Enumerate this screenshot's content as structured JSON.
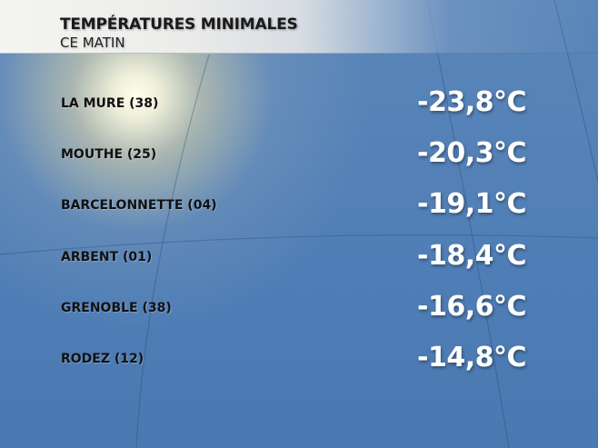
{
  "header": {
    "title": "TEMPÉRATURES MINIMALES",
    "subtitle": "CE MATIN"
  },
  "rows": [
    {
      "name": "LA MURE (38)",
      "value": "-23,8°C"
    },
    {
      "name": "MOUTHE (25)",
      "value": "-20,3°C"
    },
    {
      "name": "BARCELONNETTE (04)",
      "value": "-19,1°C"
    },
    {
      "name": "ARBENT (01)",
      "value": "-18,4°C"
    },
    {
      "name": "GRENOBLE (38)",
      "value": "-16,6°C"
    },
    {
      "name": "RODEZ (12)",
      "value": "-14,8°C"
    }
  ],
  "colors": {
    "background": "#4f7eb6",
    "value_text": "#ffffff",
    "label_text": "#111111"
  }
}
